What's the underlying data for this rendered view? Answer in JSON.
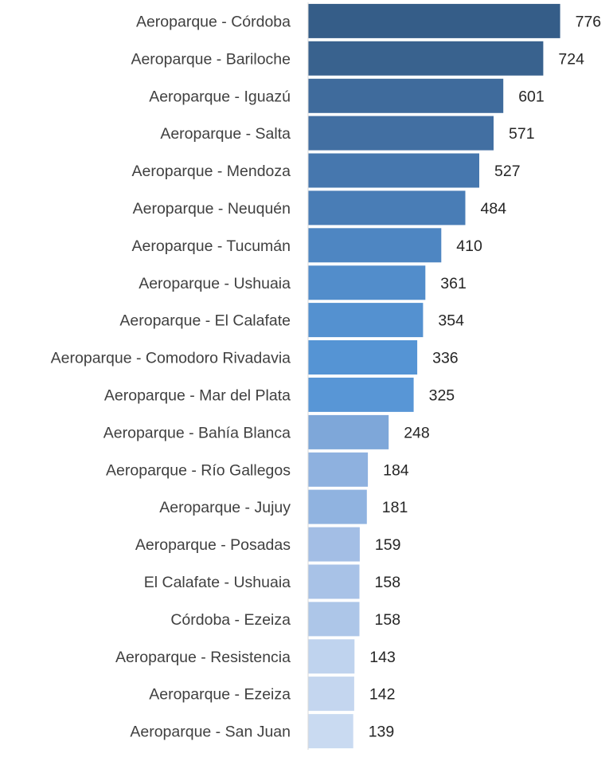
{
  "chart_data": {
    "type": "bar",
    "orientation": "horizontal",
    "title": "",
    "xlabel": "",
    "ylabel": "",
    "grid": false,
    "legend": "none",
    "xlim": [
      0,
      800
    ],
    "categories": [
      "Aeroparque - Córdoba",
      "Aeroparque - Bariloche",
      "Aeroparque - Iguazú",
      "Aeroparque - Salta",
      "Aeroparque - Mendoza",
      "Aeroparque - Neuquén",
      "Aeroparque - Tucumán",
      "Aeroparque - Ushuaia",
      "Aeroparque - El Calafate",
      "Aeroparque - Comodoro Rivadavia",
      "Aeroparque - Mar del Plata",
      "Aeroparque - Bahía Blanca",
      "Aeroparque - Río Gallegos",
      "Aeroparque - Jujuy",
      "Aeroparque - Posadas",
      "El Calafate - Ushuaia",
      "Córdoba - Ezeiza",
      "Aeroparque - Resistencia",
      "Aeroparque - Ezeiza",
      "Aeroparque - San Juan"
    ],
    "values": [
      776,
      724,
      601,
      571,
      527,
      484,
      410,
      361,
      354,
      336,
      325,
      248,
      184,
      181,
      159,
      158,
      158,
      143,
      142,
      139
    ],
    "colors": [
      "#355d88",
      "#39628e",
      "#3f6b9c",
      "#426fa2",
      "#4677ae",
      "#497db6",
      "#4e86c2",
      "#528dcb",
      "#5491d0",
      "#5594d4",
      "#5896d6",
      "#7ea7d9",
      "#8eb1df",
      "#90b3e0",
      "#a3bee5",
      "#a8c2e7",
      "#adc6e8",
      "#bfd3ee",
      "#c4d6ef",
      "#c9daf1"
    ],
    "axis_color": "#d9d9d9"
  }
}
